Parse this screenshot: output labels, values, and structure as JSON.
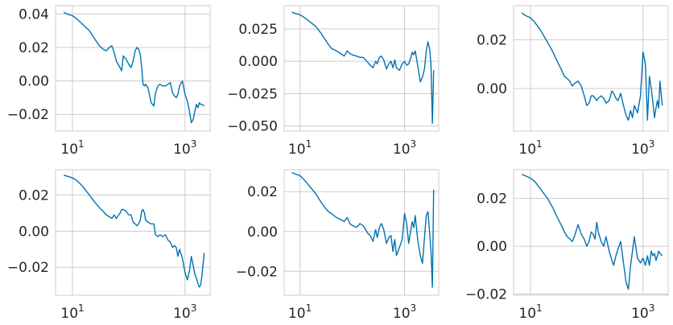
{
  "figure": {
    "background": "#ffffff",
    "line_color": "#0072b2",
    "grid_color": "#cccccc"
  },
  "chart_data": [
    {
      "type": "line",
      "xscale": "log",
      "grid": true,
      "xlim": [
        5,
        2800
      ],
      "ylim": [
        -0.03,
        0.045
      ],
      "xticks": [
        10,
        1000
      ],
      "xtick_labels": [
        [
          "10",
          "1"
        ],
        [
          "10",
          "3"
        ]
      ],
      "yticks": [
        -0.02,
        0.0,
        0.02,
        0.04
      ],
      "ytick_labels": [
        "−0.02",
        "0.00",
        "0.02",
        "0.04"
      ],
      "x": [
        7,
        8,
        10,
        12,
        15,
        20,
        25,
        30,
        35,
        40,
        45,
        50,
        55,
        60,
        70,
        75,
        80,
        90,
        100,
        110,
        120,
        130,
        140,
        150,
        160,
        170,
        180,
        190,
        200,
        220,
        250,
        280,
        300,
        330,
        360,
        400,
        450,
        500,
        550,
        600,
        650,
        700,
        750,
        800,
        900,
        1000,
        1100,
        1200,
        1300,
        1400,
        1500,
        1600,
        1700,
        1800,
        1900,
        2000,
        2200
      ],
      "y": [
        0.041,
        0.04,
        0.039,
        0.037,
        0.034,
        0.03,
        0.025,
        0.021,
        0.019,
        0.018,
        0.02,
        0.021,
        0.017,
        0.012,
        0.008,
        0.006,
        0.015,
        0.013,
        0.01,
        0.008,
        0.012,
        0.018,
        0.02,
        0.019,
        0.016,
        0.008,
        -0.002,
        -0.003,
        -0.002,
        -0.004,
        -0.013,
        -0.015,
        -0.007,
        -0.003,
        -0.002,
        -0.003,
        -0.003,
        -0.002,
        -0.001,
        -0.007,
        -0.009,
        -0.01,
        -0.008,
        -0.003,
        0.0,
        -0.008,
        -0.012,
        -0.018,
        -0.025,
        -0.023,
        -0.018,
        -0.014,
        -0.016,
        -0.013,
        -0.014,
        -0.014,
        -0.015
      ]
    },
    {
      "type": "line",
      "xscale": "log",
      "grid": true,
      "xlim": [
        5,
        4500
      ],
      "ylim": [
        -0.054,
        0.043
      ],
      "xticks": [
        10,
        1000
      ],
      "xtick_labels": [
        [
          "10",
          "1"
        ],
        [
          "10",
          "3"
        ]
      ],
      "yticks": [
        -0.05,
        -0.025,
        0.0,
        0.025
      ],
      "ytick_labels": [
        "−0.050",
        "−0.025",
        "0.000",
        "0.025"
      ],
      "x": [
        7,
        8,
        10,
        12,
        15,
        20,
        25,
        30,
        35,
        40,
        50,
        60,
        70,
        80,
        90,
        100,
        120,
        140,
        160,
        180,
        200,
        220,
        250,
        280,
        300,
        330,
        360,
        400,
        450,
        500,
        550,
        600,
        650,
        700,
        800,
        900,
        1000,
        1100,
        1200,
        1300,
        1400,
        1500,
        1600,
        1800,
        2000,
        2200,
        2400,
        2600,
        2800,
        3000,
        3200,
        3400,
        3600
      ],
      "y": [
        0.038,
        0.037,
        0.036,
        0.034,
        0.031,
        0.027,
        0.022,
        0.017,
        0.013,
        0.01,
        0.008,
        0.006,
        0.004,
        0.008,
        0.006,
        0.005,
        0.004,
        0.003,
        0.003,
        0.001,
        -0.001,
        -0.003,
        -0.005,
        0.0,
        -0.002,
        0.003,
        0.004,
        0.001,
        -0.006,
        -0.002,
        0.0,
        -0.005,
        0.001,
        -0.005,
        -0.007,
        -0.002,
        0.0,
        -0.003,
        -0.002,
        0.002,
        0.007,
        0.005,
        0.008,
        -0.004,
        -0.016,
        -0.012,
        -0.006,
        0.008,
        0.015,
        0.01,
        -0.003,
        -0.048,
        -0.007
      ]
    },
    {
      "type": "line",
      "xscale": "log",
      "grid": true,
      "xlim": [
        5,
        2800
      ],
      "ylim": [
        -0.0175,
        0.034
      ],
      "xticks": [
        10,
        1000
      ],
      "xtick_labels": [
        [
          "10",
          "1"
        ],
        [
          "10",
          "3"
        ]
      ],
      "yticks": [
        0.0,
        0.02
      ],
      "ytick_labels": [
        "0.00",
        "0.02"
      ],
      "x": [
        7,
        8,
        10,
        12,
        15,
        20,
        25,
        30,
        35,
        40,
        45,
        50,
        55,
        60,
        70,
        80,
        90,
        100,
        110,
        120,
        130,
        140,
        150,
        160,
        180,
        200,
        220,
        250,
        280,
        300,
        330,
        360,
        400,
        450,
        500,
        550,
        600,
        650,
        700,
        800,
        900,
        1000,
        1100,
        1200,
        1300,
        1400,
        1500,
        1600,
        1700,
        1800,
        1900,
        2000,
        2200
      ],
      "y": [
        0.031,
        0.03,
        0.029,
        0.027,
        0.024,
        0.019,
        0.015,
        0.011,
        0.008,
        0.005,
        0.004,
        0.003,
        0.001,
        0.002,
        0.003,
        0.001,
        -0.003,
        -0.007,
        -0.006,
        -0.003,
        -0.003,
        -0.004,
        -0.005,
        -0.004,
        -0.003,
        -0.004,
        -0.006,
        -0.005,
        -0.001,
        -0.002,
        -0.004,
        -0.005,
        -0.002,
        -0.007,
        -0.011,
        -0.013,
        -0.009,
        -0.012,
        -0.007,
        -0.01,
        -0.003,
        0.015,
        0.01,
        -0.013,
        0.005,
        0.0,
        -0.006,
        -0.012,
        -0.008,
        -0.005,
        -0.008,
        0.003,
        -0.007
      ]
    },
    {
      "type": "line",
      "xscale": "log",
      "grid": true,
      "xlim": [
        5,
        2800
      ],
      "ylim": [
        -0.0355,
        0.034
      ],
      "xticks": [
        10,
        1000
      ],
      "xtick_labels": [
        [
          "10",
          "1"
        ],
        [
          "10",
          "3"
        ]
      ],
      "yticks": [
        -0.02,
        0.0,
        0.02
      ],
      "ytick_labels": [
        "−0.02",
        "0.00",
        "0.02"
      ],
      "x": [
        7,
        8,
        10,
        12,
        15,
        20,
        25,
        30,
        35,
        40,
        45,
        50,
        55,
        60,
        70,
        75,
        80,
        90,
        100,
        110,
        120,
        130,
        140,
        150,
        160,
        170,
        180,
        190,
        200,
        220,
        250,
        280,
        300,
        330,
        360,
        400,
        450,
        500,
        550,
        600,
        650,
        700,
        750,
        800,
        900,
        1000,
        1100,
        1200,
        1300,
        1400,
        1500,
        1600,
        1700,
        1800,
        1900,
        2000,
        2200
      ],
      "y": [
        0.031,
        0.0305,
        0.0295,
        0.028,
        0.025,
        0.02,
        0.016,
        0.013,
        0.011,
        0.009,
        0.008,
        0.007,
        0.009,
        0.007,
        0.01,
        0.012,
        0.012,
        0.011,
        0.009,
        0.009,
        0.005,
        0.004,
        0.003,
        0.004,
        0.006,
        0.011,
        0.012,
        0.01,
        0.006,
        0.005,
        0.004,
        0.004,
        -0.002,
        -0.003,
        -0.002,
        -0.003,
        -0.002,
        -0.005,
        -0.006,
        -0.009,
        -0.008,
        -0.009,
        -0.014,
        -0.01,
        -0.015,
        -0.023,
        -0.027,
        -0.022,
        -0.014,
        -0.019,
        -0.024,
        -0.026,
        -0.029,
        -0.031,
        -0.03,
        -0.025,
        -0.012
      ]
    },
    {
      "type": "line",
      "xscale": "log",
      "grid": true,
      "xlim": [
        5,
        4500
      ],
      "ylim": [
        -0.032,
        0.031
      ],
      "xticks": [
        10,
        1000
      ],
      "xtick_labels": [
        [
          "10",
          "1"
        ],
        [
          "10",
          "3"
        ]
      ],
      "yticks": [
        -0.02,
        0.0,
        0.02
      ],
      "ytick_labels": [
        "−0.02",
        "0.00",
        "0.02"
      ],
      "x": [
        7,
        8,
        10,
        12,
        15,
        20,
        25,
        30,
        35,
        40,
        50,
        60,
        70,
        80,
        90,
        100,
        120,
        140,
        160,
        180,
        200,
        220,
        250,
        280,
        300,
        330,
        360,
        400,
        450,
        500,
        550,
        600,
        650,
        700,
        800,
        900,
        1000,
        1100,
        1200,
        1300,
        1400,
        1500,
        1600,
        1800,
        2000,
        2200,
        2400,
        2600,
        2800,
        3000,
        3200,
        3400,
        3600
      ],
      "y": [
        0.0295,
        0.029,
        0.028,
        0.026,
        0.023,
        0.019,
        0.015,
        0.012,
        0.01,
        0.009,
        0.007,
        0.006,
        0.005,
        0.007,
        0.004,
        0.003,
        0.002,
        0.004,
        0.003,
        0.001,
        -0.001,
        -0.002,
        -0.005,
        0.001,
        -0.003,
        0.002,
        0.004,
        0.001,
        -0.006,
        -0.003,
        -0.002,
        -0.01,
        -0.004,
        -0.012,
        -0.008,
        -0.004,
        0.009,
        0.004,
        -0.006,
        0.0,
        0.005,
        0.002,
        0.008,
        -0.005,
        -0.012,
        -0.016,
        -0.003,
        0.008,
        0.01,
        0.0,
        -0.01,
        -0.028,
        0.021
      ]
    },
    {
      "type": "line",
      "xscale": "log",
      "grid": true,
      "xlim": [
        5,
        2800
      ],
      "ylim": [
        -0.0205,
        0.032
      ],
      "xticks": [
        10,
        1000
      ],
      "xtick_labels": [
        [
          "10",
          "1"
        ],
        [
          "10",
          "3"
        ]
      ],
      "yticks": [
        -0.02,
        0.0,
        0.02
      ],
      "ytick_labels": [
        "−0.02",
        "0.00",
        "0.02"
      ],
      "x": [
        7,
        8,
        10,
        12,
        15,
        20,
        25,
        30,
        35,
        40,
        45,
        50,
        55,
        60,
        70,
        80,
        90,
        100,
        110,
        120,
        130,
        140,
        150,
        160,
        180,
        200,
        220,
        250,
        280,
        300,
        330,
        360,
        400,
        450,
        500,
        550,
        600,
        650,
        700,
        800,
        900,
        1000,
        1100,
        1200,
        1300,
        1400,
        1500,
        1600,
        1700,
        1800,
        1900,
        2000,
        2200
      ],
      "y": [
        0.03,
        0.0295,
        0.0285,
        0.027,
        0.024,
        0.02,
        0.016,
        0.012,
        0.009,
        0.006,
        0.004,
        0.003,
        0.002,
        0.004,
        0.009,
        0.005,
        0.003,
        0.0,
        0.002,
        0.006,
        0.005,
        0.003,
        0.01,
        0.006,
        0.002,
        0.0,
        0.004,
        -0.002,
        -0.006,
        -0.008,
        -0.004,
        -0.001,
        0.002,
        -0.007,
        -0.015,
        -0.018,
        -0.008,
        -0.002,
        0.004,
        -0.005,
        -0.007,
        -0.005,
        -0.008,
        -0.004,
        -0.008,
        -0.002,
        -0.004,
        -0.003,
        -0.006,
        -0.004,
        -0.002,
        -0.003,
        -0.004
      ]
    }
  ]
}
